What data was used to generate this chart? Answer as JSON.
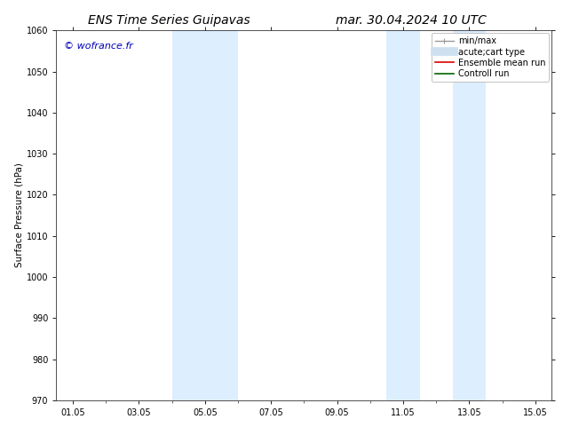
{
  "title": "ENS Time Series Guipavas",
  "title_right": "mar. 30.04.2024 10 UTC",
  "ylabel": "Surface Pressure (hPa)",
  "ylim": [
    970,
    1060
  ],
  "yticks": [
    970,
    980,
    990,
    1000,
    1010,
    1020,
    1030,
    1040,
    1050,
    1060
  ],
  "xlim": [
    0.5,
    15.5
  ],
  "xtick_labels": [
    "01.05",
    "03.05",
    "05.05",
    "07.05",
    "09.05",
    "11.05",
    "13.05",
    "15.05"
  ],
  "xtick_positions": [
    1,
    3,
    5,
    7,
    9,
    11,
    13,
    15
  ],
  "shaded_bands": [
    {
      "x_start": 4.0,
      "x_end": 5.0,
      "color": "#ddeeff"
    },
    {
      "x_start": 5.0,
      "x_end": 6.0,
      "color": "#ddeeff"
    },
    {
      "x_start": 10.5,
      "x_end": 11.5,
      "color": "#ddeeff"
    },
    {
      "x_start": 12.5,
      "x_end": 13.5,
      "color": "#ddeeff"
    }
  ],
  "legend_entries": [
    {
      "label": "min/max",
      "color": "#999999",
      "linewidth": 1.0,
      "linestyle": "-",
      "marker": true
    },
    {
      "label": "acute;cart type",
      "color": "#cce0f0",
      "linewidth": 7,
      "linestyle": "-"
    },
    {
      "label": "Ensemble mean run",
      "color": "#dd0000",
      "linewidth": 1.2,
      "linestyle": "-"
    },
    {
      "label": "Controll run",
      "color": "#006600",
      "linewidth": 1.2,
      "linestyle": "-"
    }
  ],
  "watermark": "© wofrance.fr",
  "watermark_color": "#0000bb",
  "bg_color": "#ffffff",
  "plot_bg_color": "#ffffff",
  "title_fontsize": 10,
  "tick_fontsize": 7,
  "label_fontsize": 7.5,
  "legend_fontsize": 7,
  "watermark_fontsize": 8
}
